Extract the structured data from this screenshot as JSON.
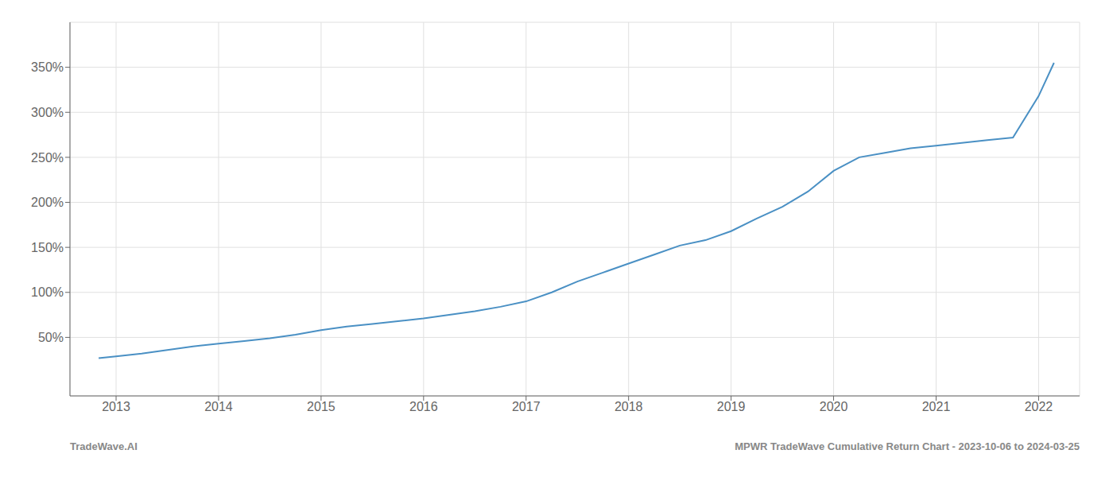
{
  "chart_data": {
    "type": "line",
    "annotations": [
      "TradeWave.AI",
      "MPWR TradeWave Cumulative Return Chart - 2023-10-06 to 2024-03-25"
    ],
    "color": "#4a90c4",
    "x": [
      2012.83,
      2013.0,
      2013.25,
      2013.5,
      2013.75,
      2014.0,
      2014.25,
      2014.5,
      2014.75,
      2015.0,
      2015.25,
      2015.5,
      2015.75,
      2016.0,
      2016.25,
      2016.5,
      2016.75,
      2017.0,
      2017.25,
      2017.5,
      2017.75,
      2018.0,
      2018.25,
      2018.5,
      2018.75,
      2019.0,
      2019.25,
      2019.5,
      2019.75,
      2020.0,
      2020.25,
      2020.5,
      2020.75,
      2021.0,
      2021.25,
      2021.5,
      2021.75,
      2022.0,
      2022.15
    ],
    "values": [
      27,
      29,
      32,
      36,
      40,
      43,
      46,
      49,
      53,
      58,
      62,
      65,
      68,
      71,
      75,
      79,
      84,
      90,
      100,
      112,
      122,
      132,
      142,
      152,
      158,
      168,
      182,
      195,
      212,
      235,
      250,
      255,
      260,
      263,
      266,
      269,
      272,
      318,
      355
    ],
    "xlim": [
      2012.55,
      2022.4
    ],
    "ylim": [
      -15,
      400
    ],
    "xticks": [
      2013,
      2014,
      2015,
      2016,
      2017,
      2018,
      2019,
      2020,
      2021,
      2022
    ],
    "yticks": [
      {
        "value": 50,
        "label": "50%"
      },
      {
        "value": 100,
        "label": "100%"
      },
      {
        "value": 150,
        "label": "150%"
      },
      {
        "value": 200,
        "label": "200%"
      },
      {
        "value": 250,
        "label": "250%"
      },
      {
        "value": 300,
        "label": "300%"
      },
      {
        "value": 350,
        "label": "350%"
      }
    ],
    "grid": true
  }
}
